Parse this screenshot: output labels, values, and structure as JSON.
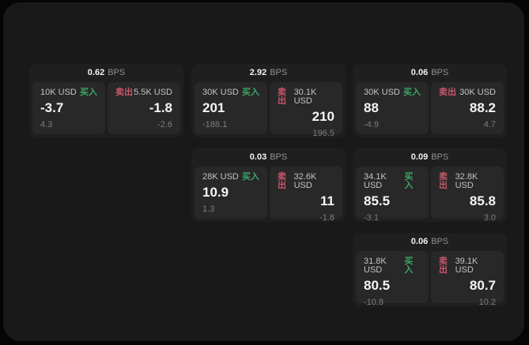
{
  "labels": {
    "buy": "买入",
    "sell": "卖出",
    "unit": "BPS"
  },
  "colors": {
    "page_background": "#050505",
    "window_background": "#191919",
    "card_background": "#1f1f1f",
    "panel_background": "#282828",
    "buy_green": "#3ea565",
    "sell_red": "#c9566b",
    "primary_text": "#f5f5f5",
    "muted_text": "#7d7d7d"
  },
  "cards": [
    {
      "bps": "0.62",
      "buy": {
        "size": "10K USD",
        "price": "-3.7",
        "change": "4.3"
      },
      "sell": {
        "size": "5.5K USD",
        "price": "-1.8",
        "change": "-2.6"
      }
    },
    {
      "bps": "2.92",
      "buy": {
        "size": "30K USD",
        "price": "201",
        "change": "-188.1"
      },
      "sell": {
        "size": "30.1K USD",
        "price": "210",
        "change": "196.5"
      }
    },
    {
      "bps": "0.06",
      "buy": {
        "size": "30K USD",
        "price": "88",
        "change": "-4.9"
      },
      "sell": {
        "size": "30K USD",
        "price": "88.2",
        "change": "4.7"
      }
    },
    {
      "bps": "0.03",
      "buy": {
        "size": "28K USD",
        "price": "10.9",
        "change": "1.3"
      },
      "sell": {
        "size": "32.6K USD",
        "price": "11",
        "change": "-1.8"
      }
    },
    {
      "bps": "0.09",
      "buy": {
        "size": "34.1K USD",
        "price": "85.5",
        "change": "-3.1"
      },
      "sell": {
        "size": "32.8K USD",
        "price": "85.8",
        "change": "3.0"
      }
    },
    {
      "bps": "0.06",
      "buy": {
        "size": "31.8K USD",
        "price": "80.5",
        "change": "-10.8"
      },
      "sell": {
        "size": "39.1K USD",
        "price": "80.7",
        "change": "10.2"
      }
    }
  ]
}
